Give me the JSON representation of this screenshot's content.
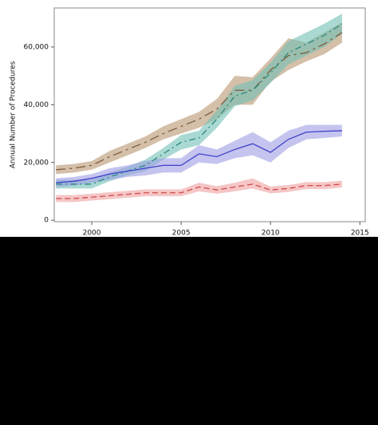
{
  "chart_data": {
    "type": "line",
    "y_label": "Annual Number of Procedures",
    "x": [
      1998,
      1999,
      2000,
      2001,
      2002,
      2003,
      2004,
      2005,
      2006,
      2007,
      2008,
      2009,
      2010,
      2011,
      2012,
      2013,
      2014
    ],
    "xlim": [
      1997.9,
      2015.3
    ],
    "xticks": [
      2000,
      2005,
      2010,
      2015
    ],
    "ylim": [
      -500,
      73500
    ],
    "yticks": [
      0,
      {
        "value": 20000,
        "label": "20,000"
      },
      {
        "value": 40000,
        "label": "40,000"
      },
      {
        "value": 60000,
        "label": "60,000"
      }
    ],
    "series": [
      {
        "color": "#7d5c3c",
        "band_color": "#b8946f",
        "dash": "12 5 3 5",
        "values": [
          17500,
          18000,
          19000,
          22000,
          24500,
          27000,
          30000,
          32500,
          35000,
          38500,
          45000,
          45000,
          52000,
          57000,
          58000,
          61000,
          65000
        ],
        "lower": [
          16000,
          16500,
          17500,
          20000,
          22500,
          25000,
          28000,
          30000,
          32000,
          35000,
          40000,
          40000,
          48000,
          52000,
          55000,
          57500,
          61500
        ],
        "upper": [
          19000,
          19500,
          20500,
          24000,
          26500,
          29000,
          32500,
          35000,
          37500,
          42000,
          50000,
          49500,
          56000,
          63000,
          61500,
          65000,
          68500
        ]
      },
      {
        "color": "#2a8a7c",
        "band_color": "#6fc0b4",
        "dash": "8 4 2 4",
        "values": [
          12500,
          12500,
          12500,
          15000,
          17000,
          19000,
          23000,
          27000,
          28500,
          35000,
          43000,
          45000,
          51000,
          58000,
          61000,
          64000,
          68000
        ],
        "lower": [
          11000,
          11000,
          11000,
          13500,
          15500,
          17000,
          21000,
          24500,
          26000,
          32000,
          39500,
          41500,
          47500,
          54000,
          57000,
          60000,
          64500
        ],
        "upper": [
          14000,
          14000,
          14000,
          16500,
          18500,
          21000,
          25000,
          29500,
          31000,
          38000,
          46500,
          48500,
          54500,
          62000,
          65000,
          68000,
          71500
        ]
      },
      {
        "color": "#4040c8",
        "band_color": "#9c9ce4",
        "dash": "none",
        "values": [
          13000,
          13500,
          14500,
          16000,
          17000,
          18000,
          19000,
          19000,
          23000,
          22000,
          24500,
          26500,
          23500,
          28000,
          30500,
          30800,
          31000
        ],
        "lower": [
          11500,
          12000,
          13000,
          14000,
          15000,
          15500,
          16500,
          16500,
          20000,
          19500,
          21500,
          22500,
          20000,
          25000,
          28000,
          28500,
          29000
        ],
        "upper": [
          14500,
          15000,
          16000,
          18000,
          19000,
          20500,
          21500,
          21500,
          26000,
          24500,
          27500,
          30500,
          27000,
          31000,
          33000,
          33000,
          33000
        ]
      },
      {
        "color": "#d04848",
        "band_color": "#eea0a0",
        "dash": "7 4",
        "values": [
          7500,
          7500,
          8000,
          8500,
          9000,
          9500,
          9500,
          9500,
          11500,
          10500,
          11500,
          12500,
          10500,
          11000,
          12000,
          12000,
          12500
        ],
        "lower": [
          6300,
          6300,
          6800,
          7300,
          7800,
          8300,
          8300,
          8300,
          10000,
          9200,
          10000,
          11000,
          9300,
          9800,
          10800,
          10800,
          11300
        ],
        "upper": [
          8700,
          8700,
          9200,
          9700,
          10200,
          10700,
          10700,
          10700,
          13000,
          11800,
          13000,
          14500,
          11700,
          12200,
          13200,
          13200,
          13700
        ]
      }
    ]
  }
}
